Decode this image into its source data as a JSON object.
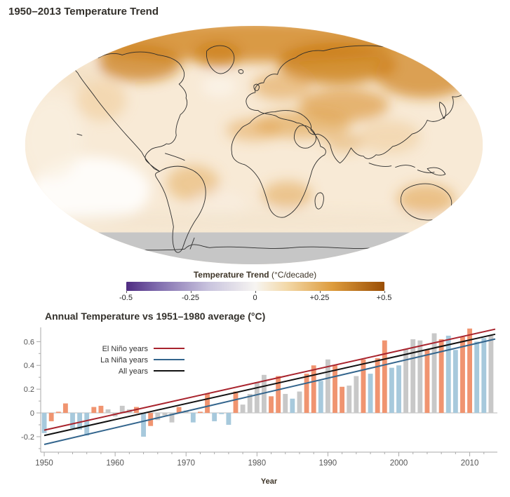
{
  "page": {
    "map_title": "1950–2013 Temperature Trend"
  },
  "map": {
    "base_color": "#f8ead6",
    "no_data_color": "#c6c6c6",
    "coastline_color": "#2b2b2b",
    "colorbar": {
      "title": "Temperature Trend",
      "units": "(°C/decade)",
      "ticks": [
        "-0.5",
        "-0.25",
        "0",
        "+0.25",
        "+0.5"
      ],
      "gradient_stops": [
        "#4f2c82 0%",
        "#7f6bad 12%",
        "#c9c4de 32%",
        "#f7f5f2 50%",
        "#f3d9a9 62%",
        "#dd9b3c 80%",
        "#9a4e05 100%"
      ]
    }
  },
  "chart_data": {
    "type": "bar",
    "title": "Annual Temperature vs 1951–1980 average (°C)",
    "xlabel": "Year",
    "ylabel": "",
    "ylim": [
      -0.33,
      0.72
    ],
    "grid": false,
    "legend_position": "top-left",
    "yticks": [
      {
        "v": -0.2,
        "label": "-0.2"
      },
      {
        "v": 0,
        "label": "0"
      },
      {
        "v": 0.2,
        "label": "0.2"
      },
      {
        "v": 0.4,
        "label": "0.4"
      },
      {
        "v": 0.6,
        "label": "0.6"
      }
    ],
    "xticks": [
      {
        "v": 1950,
        "label": "1950"
      },
      {
        "v": 1960,
        "label": "1960"
      },
      {
        "v": 1970,
        "label": "1970"
      },
      {
        "v": 1980,
        "label": "1980"
      },
      {
        "v": 1990,
        "label": "1990"
      },
      {
        "v": 2000,
        "label": "2000"
      },
      {
        "v": 2010,
        "label": "2010"
      }
    ],
    "xtick_minor_step": 2,
    "ytick_minor_step": 0.1,
    "colors": {
      "elnino_bar": "#f09470",
      "lanina_bar": "#a7c9dc",
      "neutral_bar": "#c8c8c8",
      "elnino_line": "#a8232d",
      "lanina_line": "#33658d",
      "all_line": "#111111",
      "axis": "#aaaaaa",
      "tick_text": "#555555"
    },
    "legend": [
      {
        "label": "El Niño years",
        "color_key": "elnino_line"
      },
      {
        "label": "La Niña years",
        "color_key": "lanina_line"
      },
      {
        "label": "All years",
        "color_key": "all_line"
      }
    ],
    "trendlines": [
      {
        "name": "El Niño years",
        "color_key": "elnino_line",
        "x": [
          1950,
          2013.6
        ],
        "y": [
          -0.145,
          0.705
        ]
      },
      {
        "name": "All years",
        "color_key": "all_line",
        "x": [
          1950,
          2013.6
        ],
        "y": [
          -0.19,
          0.662
        ]
      },
      {
        "name": "La Niña years",
        "color_key": "lanina_line",
        "x": [
          1950,
          2013.6
        ],
        "y": [
          -0.265,
          0.622
        ]
      }
    ],
    "years": [
      {
        "year": 1950,
        "value": -0.17,
        "enso": "lanina"
      },
      {
        "year": 1951,
        "value": -0.07,
        "enso": "elnino"
      },
      {
        "year": 1952,
        "value": 0.01,
        "enso": "elnino"
      },
      {
        "year": 1953,
        "value": 0.08,
        "enso": "elnino"
      },
      {
        "year": 1954,
        "value": -0.13,
        "enso": "lanina"
      },
      {
        "year": 1955,
        "value": -0.14,
        "enso": "lanina"
      },
      {
        "year": 1956,
        "value": -0.19,
        "enso": "lanina"
      },
      {
        "year": 1957,
        "value": 0.05,
        "enso": "elnino"
      },
      {
        "year": 1958,
        "value": 0.06,
        "enso": "elnino"
      },
      {
        "year": 1959,
        "value": 0.03,
        "enso": "none"
      },
      {
        "year": 1960,
        "value": -0.03,
        "enso": "none"
      },
      {
        "year": 1961,
        "value": 0.06,
        "enso": "none"
      },
      {
        "year": 1962,
        "value": 0.03,
        "enso": "none"
      },
      {
        "year": 1963,
        "value": 0.05,
        "enso": "elnino"
      },
      {
        "year": 1964,
        "value": -0.2,
        "enso": "lanina"
      },
      {
        "year": 1965,
        "value": -0.11,
        "enso": "elnino"
      },
      {
        "year": 1966,
        "value": -0.06,
        "enso": "none"
      },
      {
        "year": 1967,
        "value": -0.02,
        "enso": "none"
      },
      {
        "year": 1968,
        "value": -0.08,
        "enso": "none"
      },
      {
        "year": 1969,
        "value": 0.05,
        "enso": "elnino"
      },
      {
        "year": 1970,
        "value": 0.02,
        "enso": "none"
      },
      {
        "year": 1971,
        "value": -0.08,
        "enso": "lanina"
      },
      {
        "year": 1972,
        "value": 0.01,
        "enso": "elnino"
      },
      {
        "year": 1973,
        "value": 0.16,
        "enso": "elnino"
      },
      {
        "year": 1974,
        "value": -0.07,
        "enso": "lanina"
      },
      {
        "year": 1975,
        "value": -0.01,
        "enso": "lanina"
      },
      {
        "year": 1976,
        "value": -0.1,
        "enso": "lanina"
      },
      {
        "year": 1977,
        "value": 0.18,
        "enso": "elnino"
      },
      {
        "year": 1978,
        "value": 0.07,
        "enso": "none"
      },
      {
        "year": 1979,
        "value": 0.16,
        "enso": "none"
      },
      {
        "year": 1980,
        "value": 0.26,
        "enso": "none"
      },
      {
        "year": 1981,
        "value": 0.32,
        "enso": "none"
      },
      {
        "year": 1982,
        "value": 0.14,
        "enso": "elnino"
      },
      {
        "year": 1983,
        "value": 0.31,
        "enso": "elnino"
      },
      {
        "year": 1984,
        "value": 0.16,
        "enso": "none"
      },
      {
        "year": 1985,
        "value": 0.12,
        "enso": "lanina"
      },
      {
        "year": 1986,
        "value": 0.18,
        "enso": "none"
      },
      {
        "year": 1987,
        "value": 0.33,
        "enso": "elnino"
      },
      {
        "year": 1988,
        "value": 0.4,
        "enso": "elnino"
      },
      {
        "year": 1989,
        "value": 0.27,
        "enso": "lanina"
      },
      {
        "year": 1990,
        "value": 0.45,
        "enso": "none"
      },
      {
        "year": 1991,
        "value": 0.4,
        "enso": "elnino"
      },
      {
        "year": 1992,
        "value": 0.22,
        "enso": "elnino"
      },
      {
        "year": 1993,
        "value": 0.23,
        "enso": "none"
      },
      {
        "year": 1994,
        "value": 0.31,
        "enso": "none"
      },
      {
        "year": 1995,
        "value": 0.45,
        "enso": "elnino"
      },
      {
        "year": 1996,
        "value": 0.33,
        "enso": "lanina"
      },
      {
        "year": 1997,
        "value": 0.46,
        "enso": "elnino"
      },
      {
        "year": 1998,
        "value": 0.61,
        "enso": "elnino"
      },
      {
        "year": 1999,
        "value": 0.38,
        "enso": "lanina"
      },
      {
        "year": 2000,
        "value": 0.4,
        "enso": "lanina"
      },
      {
        "year": 2001,
        "value": 0.54,
        "enso": "none"
      },
      {
        "year": 2002,
        "value": 0.62,
        "enso": "none"
      },
      {
        "year": 2003,
        "value": 0.61,
        "enso": "none"
      },
      {
        "year": 2004,
        "value": 0.53,
        "enso": "elnino"
      },
      {
        "year": 2005,
        "value": 0.67,
        "enso": "none"
      },
      {
        "year": 2006,
        "value": 0.62,
        "enso": "elnino"
      },
      {
        "year": 2007,
        "value": 0.65,
        "enso": "lanina"
      },
      {
        "year": 2008,
        "value": 0.53,
        "enso": "lanina"
      },
      {
        "year": 2009,
        "value": 0.64,
        "enso": "elnino"
      },
      {
        "year": 2010,
        "value": 0.71,
        "enso": "elnino"
      },
      {
        "year": 2011,
        "value": 0.6,
        "enso": "lanina"
      },
      {
        "year": 2012,
        "value": 0.63,
        "enso": "lanina"
      },
      {
        "year": 2013,
        "value": 0.65,
        "enso": "none"
      }
    ]
  }
}
